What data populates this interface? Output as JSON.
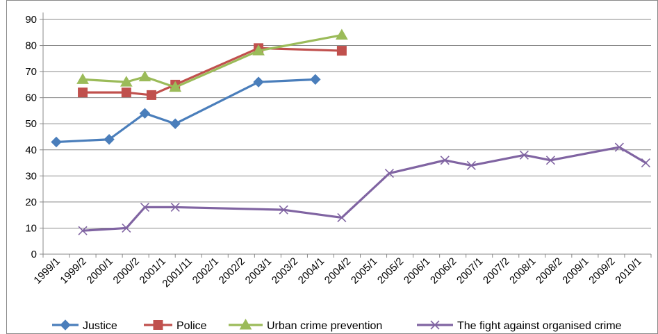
{
  "chart_data": {
    "type": "line",
    "title": "",
    "xlabel": "",
    "ylabel": "",
    "ylim": [
      0,
      90
    ],
    "yticks": [
      0,
      10,
      20,
      30,
      40,
      50,
      60,
      70,
      80,
      90
    ],
    "grid": "horizontal",
    "legend_position": "bottom",
    "categories": [
      "1999/1",
      "1999/2",
      "2000/1",
      "2000/2",
      "2001/1",
      "2001/11",
      "2002/1",
      "2002/2",
      "2003/1",
      "2003/2",
      "2004/1",
      "2004/2",
      "2005/1",
      "2005/2",
      "2006/1",
      "2006/2",
      "2007/1",
      "2007/2",
      "2008/1",
      "2008/2",
      "2009/1",
      "2009/2",
      "2010/1"
    ],
    "series": [
      {
        "name": "Justice",
        "color": "#4a7ebb",
        "marker": "diamond",
        "points": [
          {
            "x": 0,
            "y": 43
          },
          {
            "x": 2,
            "y": 44
          },
          {
            "x": 3.35,
            "y": 54
          },
          {
            "x": 4.5,
            "y": 50
          },
          {
            "x": 7.65,
            "y": 66
          },
          {
            "x": 9.8,
            "y": 67
          }
        ]
      },
      {
        "name": "Police",
        "color": "#c0504d",
        "marker": "square",
        "points": [
          {
            "x": 1,
            "y": 62
          },
          {
            "x": 2.65,
            "y": 62
          },
          {
            "x": 3.6,
            "y": 61
          },
          {
            "x": 4.5,
            "y": 65
          },
          {
            "x": 7.65,
            "y": 79
          },
          {
            "x": 10.8,
            "y": 78
          }
        ]
      },
      {
        "name": "Urban crime prevention",
        "color": "#9bbb59",
        "marker": "triangle",
        "points": [
          {
            "x": 1,
            "y": 67
          },
          {
            "x": 2.65,
            "y": 66
          },
          {
            "x": 3.35,
            "y": 68
          },
          {
            "x": 4.5,
            "y": 64
          },
          {
            "x": 7.65,
            "y": 78
          },
          {
            "x": 10.8,
            "y": 84
          }
        ]
      },
      {
        "name": "The fight against organised crime",
        "color": "#8064a2",
        "marker": "x",
        "points": [
          {
            "x": 1,
            "y": 9
          },
          {
            "x": 2.65,
            "y": 10
          },
          {
            "x": 3.35,
            "y": 18
          },
          {
            "x": 4.5,
            "y": 18
          },
          {
            "x": 8.6,
            "y": 17
          },
          {
            "x": 10.8,
            "y": 14
          },
          {
            "x": 12.6,
            "y": 31
          },
          {
            "x": 14.7,
            "y": 36
          },
          {
            "x": 15.7,
            "y": 34
          },
          {
            "x": 17.7,
            "y": 38
          },
          {
            "x": 18.7,
            "y": 36
          },
          {
            "x": 21.3,
            "y": 41
          },
          {
            "x": 22.3,
            "y": 35
          }
        ]
      }
    ]
  }
}
